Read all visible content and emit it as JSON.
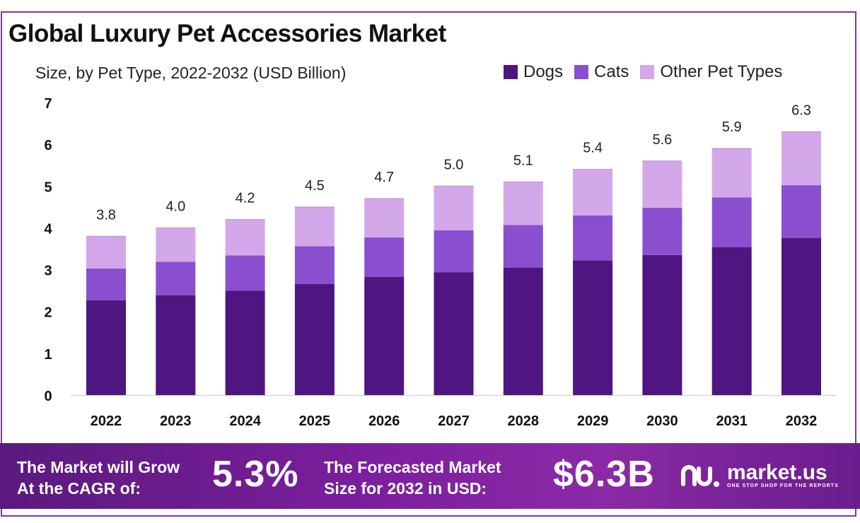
{
  "title": "Global Luxury Pet Accessories Market",
  "subtitle": "Size, by Pet Type, 2022-2032 (USD Billion)",
  "colors": {
    "dogs": "#4f1580",
    "cats": "#8a4fcf",
    "other": "#d2a8ea",
    "axis": "#cccccc",
    "text": "#222222"
  },
  "chart_data": {
    "type": "bar",
    "stacked": true,
    "title": "Global Luxury Pet Accessories Market",
    "subtitle": "Size, by Pet Type, 2022-2032 (USD Billion)",
    "xlabel": "",
    "ylabel": "",
    "ylim": [
      0,
      7
    ],
    "yticks": [
      "0",
      "1",
      "2",
      "3",
      "4",
      "5",
      "6",
      "7"
    ],
    "grid": false,
    "legend_position": "top-right",
    "categories": [
      "2022",
      "2023",
      "2024",
      "2025",
      "2026",
      "2027",
      "2028",
      "2029",
      "2030",
      "2031",
      "2032"
    ],
    "series": [
      {
        "name": "Dogs",
        "values": [
          2.27,
          2.39,
          2.5,
          2.66,
          2.83,
          2.94,
          3.05,
          3.22,
          3.35,
          3.54,
          3.76
        ]
      },
      {
        "name": "Cats",
        "values": [
          0.76,
          0.8,
          0.84,
          0.9,
          0.94,
          1.0,
          1.02,
          1.08,
          1.13,
          1.19,
          1.26
        ]
      },
      {
        "name": "Other Pet Types",
        "values": [
          0.77,
          0.81,
          0.86,
          0.94,
          0.93,
          1.06,
          1.03,
          1.1,
          1.12,
          1.17,
          1.28
        ]
      }
    ],
    "totals": [
      "3.8",
      "4.0",
      "4.2",
      "4.5",
      "4.7",
      "5.0",
      "5.1",
      "5.4",
      "5.6",
      "5.9",
      "6.3"
    ]
  },
  "banner": {
    "cagr_label_line1": "The Market will Grow",
    "cagr_label_line2": "At the CAGR of:",
    "cagr_value": "5.3%",
    "forecast_label_line1": "The Forecasted Market",
    "forecast_label_line2": "Size for 2032 in USD:",
    "forecast_value": "$6.3B",
    "brand_name": "market.us",
    "brand_tagline": "ONE STOP SHOP FOR THE REPORTS"
  }
}
